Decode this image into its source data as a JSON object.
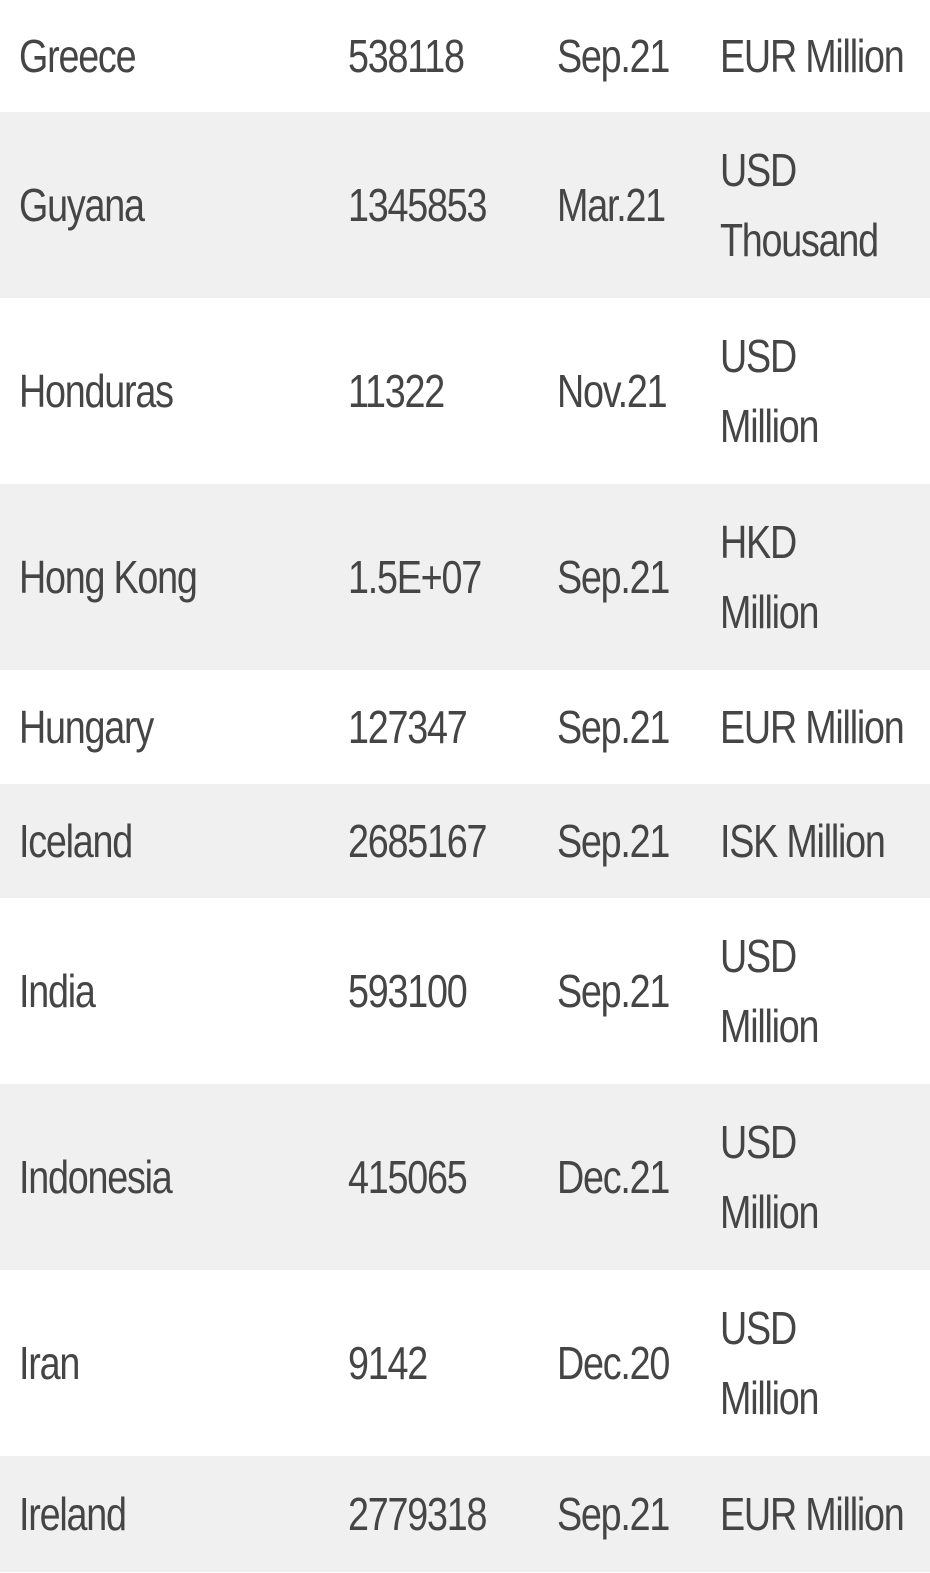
{
  "rows": [
    {
      "country": "Greece",
      "value": "538118",
      "date": "Sep.21",
      "unit": [
        "EUR Million"
      ]
    },
    {
      "country": "Guyana",
      "value": "1345853",
      "date": "Mar.21",
      "unit": [
        "USD",
        "Thousand"
      ]
    },
    {
      "country": "Honduras",
      "value": "11322",
      "date": "Nov.21",
      "unit": [
        "USD",
        "Million"
      ]
    },
    {
      "country": "Hong Kong",
      "value": "1.5E+07",
      "date": "Sep.21",
      "unit": [
        "HKD",
        "Million"
      ]
    },
    {
      "country": "Hungary",
      "value": "127347",
      "date": "Sep.21",
      "unit": [
        "EUR Million"
      ]
    },
    {
      "country": "Iceland",
      "value": "2685167",
      "date": "Sep.21",
      "unit": [
        "ISK Million"
      ]
    },
    {
      "country": "India",
      "value": "593100",
      "date": "Sep.21",
      "unit": [
        "USD",
        "Million"
      ]
    },
    {
      "country": "Indonesia",
      "value": "415065",
      "date": "Dec.21",
      "unit": [
        "USD",
        "Million"
      ]
    },
    {
      "country": "Iran",
      "value": "9142",
      "date": "Dec.20",
      "unit": [
        "USD",
        "Million"
      ]
    },
    {
      "country": "Ireland",
      "value": "2779318",
      "date": "Sep.21",
      "unit": [
        "EUR Million"
      ]
    }
  ]
}
